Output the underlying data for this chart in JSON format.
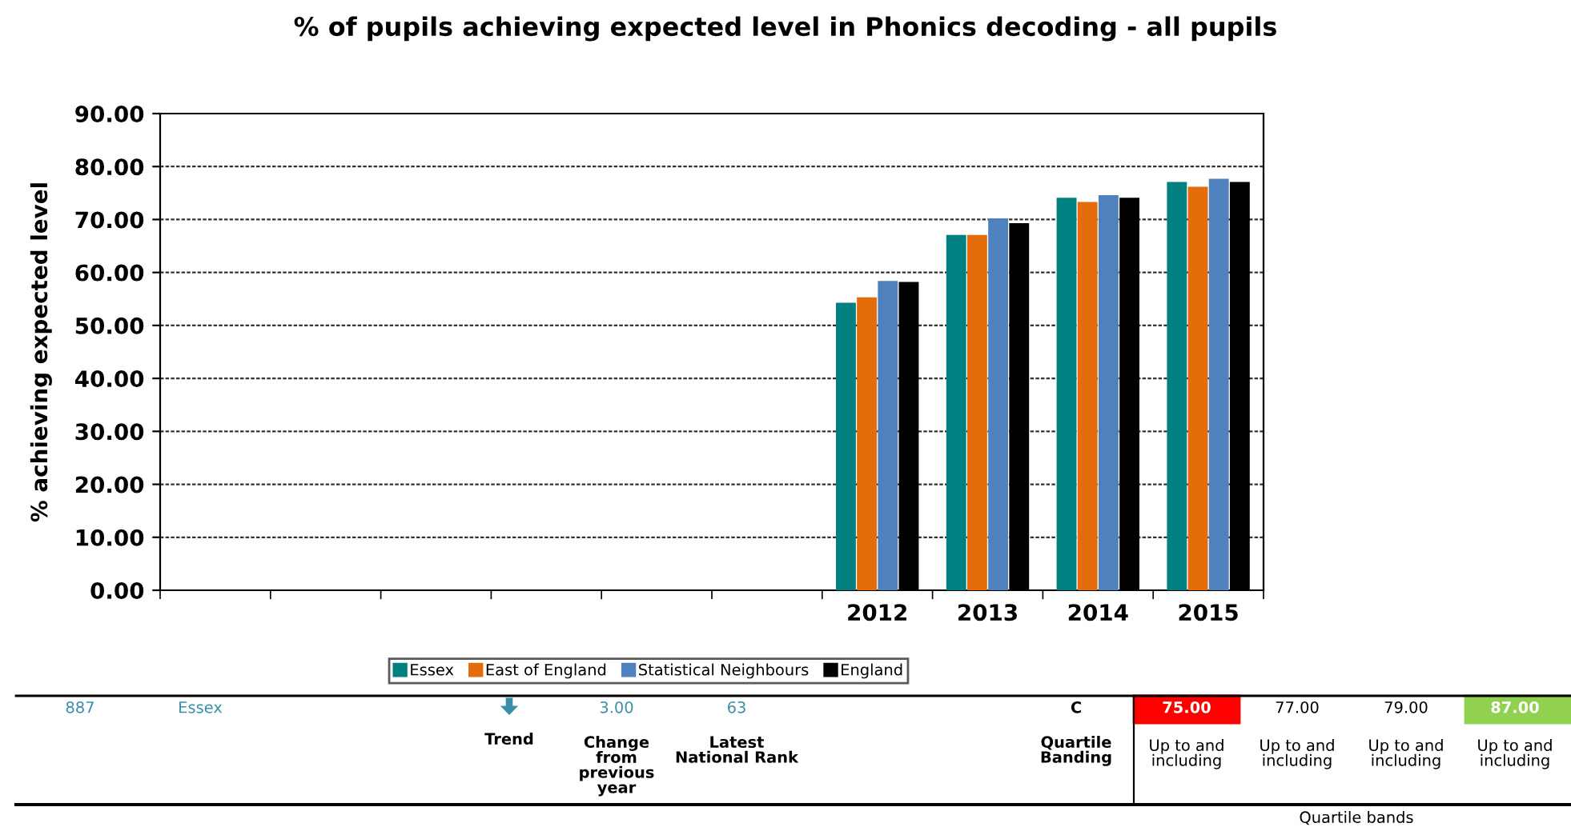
{
  "chart_data": {
    "type": "bar",
    "title": "% of pupils achieving expected level in Phonics decoding - all pupils",
    "ylabel": "% achieving expected level",
    "categories": [
      null,
      null,
      null,
      null,
      null,
      null,
      "2012",
      "2013",
      "2014",
      "2015"
    ],
    "series": [
      {
        "name": "Essex",
        "color": "#008080",
        "values": [
          null,
          null,
          null,
          null,
          null,
          null,
          54.3,
          67.1,
          74.1,
          77.1
        ]
      },
      {
        "name": "East of England",
        "color": "#e46c0a",
        "values": [
          null,
          null,
          null,
          null,
          null,
          null,
          55.3,
          67.1,
          73.3,
          76.2
        ]
      },
      {
        "name": "Statistical Neighbours",
        "color": "#4f81bd",
        "values": [
          null,
          null,
          null,
          null,
          null,
          null,
          58.4,
          70.2,
          74.6,
          77.7
        ]
      },
      {
        "name": "England",
        "color": "#000000",
        "values": [
          null,
          null,
          null,
          null,
          null,
          null,
          58.2,
          69.3,
          74.1,
          77.1
        ]
      }
    ],
    "ylim": [
      0,
      90
    ],
    "yticks": [
      {
        "value": 0,
        "label": "0.00"
      },
      {
        "value": 10,
        "label": "10.00"
      },
      {
        "value": 20,
        "label": "20.00"
      },
      {
        "value": 30,
        "label": "30.00"
      },
      {
        "value": 40,
        "label": "40.00"
      },
      {
        "value": 50,
        "label": "50.00"
      },
      {
        "value": 60,
        "label": "60.00"
      },
      {
        "value": 70,
        "label": "70.00"
      },
      {
        "value": 80,
        "label": "80.00"
      },
      {
        "value": 90,
        "label": "90.00"
      }
    ],
    "grid": "y",
    "legend": "bottom",
    "annotations": [
      "887",
      "Essex",
      "Trend",
      "3.00",
      "Change\nfrom\nprevious\nyear",
      "63",
      "Latest\nNational Rank",
      "C",
      "Quartile\nBanding",
      "75.00",
      "77.00",
      "79.00",
      "87.00",
      "Up to and\nincluding",
      "Up to and\nincluding",
      "Up to and\nincluding",
      "Up to and\nincluding",
      "Quartile bands"
    ]
  }
}
